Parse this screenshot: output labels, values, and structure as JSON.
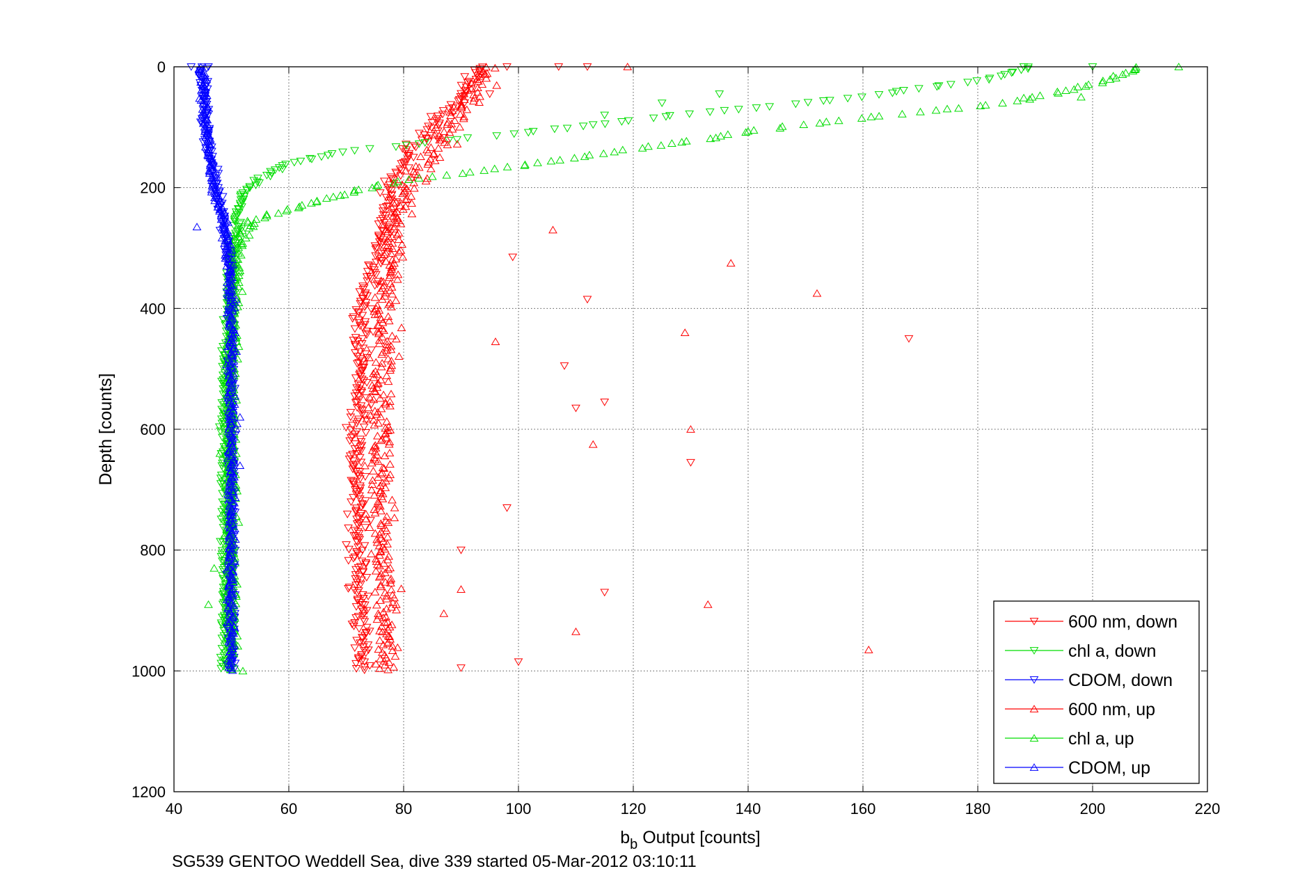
{
  "chart_data": {
    "type": "scatter",
    "xlabel_base": "b",
    "xlabel_sub": "b",
    "xlabel_rest": " Output [counts]",
    "ylabel": "Depth [counts]",
    "xlim": [
      40,
      220
    ],
    "ylim": [
      0,
      1200
    ],
    "y_reversed": true,
    "grid": true,
    "legend_position": "bottom-right",
    "x_ticks": [
      40,
      60,
      80,
      100,
      120,
      140,
      160,
      180,
      200,
      220
    ],
    "y_ticks": [
      0,
      200,
      400,
      600,
      800,
      1000,
      1200
    ],
    "series": [
      {
        "name": "600 nm, down",
        "color": "#ff0000",
        "marker": "triangle-down",
        "profile": [
          [
            0,
            93
          ],
          [
            50,
            90
          ],
          [
            100,
            85
          ],
          [
            150,
            80
          ],
          [
            200,
            78
          ],
          [
            300,
            76
          ],
          [
            350,
            74
          ],
          [
            400,
            73
          ],
          [
            600,
            72
          ],
          [
            800,
            72
          ],
          [
            1000,
            73
          ]
        ],
        "spread": 2.2,
        "outliers": [
          [
            0,
            98
          ],
          [
            0,
            107
          ],
          [
            0,
            112
          ],
          [
            45,
            95
          ],
          [
            120,
            86
          ],
          [
            315,
            99
          ],
          [
            385,
            112
          ],
          [
            450,
            168
          ],
          [
            495,
            108
          ],
          [
            555,
            115
          ],
          [
            565,
            110
          ],
          [
            655,
            130
          ],
          [
            730,
            98
          ],
          [
            800,
            90
          ],
          [
            870,
            115
          ],
          [
            985,
            100
          ],
          [
            995,
            90
          ]
        ]
      },
      {
        "name": "chl a, down",
        "color": "#00dd00",
        "marker": "triangle-down",
        "profile": [
          [
            0,
            190
          ],
          [
            20,
            182
          ],
          [
            50,
            160
          ],
          [
            80,
            128
          ],
          [
            110,
            100
          ],
          [
            140,
            70
          ],
          [
            160,
            60
          ],
          [
            185,
            55
          ],
          [
            210,
            52
          ],
          [
            250,
            51
          ],
          [
            300,
            50
          ],
          [
            500,
            49
          ],
          [
            800,
            49
          ],
          [
            1000,
            49
          ]
        ],
        "spread": 1.2,
        "outliers": [
          [
            0,
            188
          ],
          [
            0,
            200
          ],
          [
            60,
            125
          ],
          [
            45,
            135
          ],
          [
            80,
            115
          ]
        ]
      },
      {
        "name": "CDOM, down",
        "color": "#0000ff",
        "marker": "triangle-down",
        "profile": [
          [
            0,
            45
          ],
          [
            100,
            45.5
          ],
          [
            200,
            47.5
          ],
          [
            300,
            49.5
          ],
          [
            400,
            50
          ],
          [
            600,
            50
          ],
          [
            800,
            50
          ],
          [
            1000,
            50
          ]
        ],
        "spread": 0.9,
        "outliers": [
          [
            0,
            43
          ],
          [
            0,
            46
          ]
        ]
      },
      {
        "name": "600 nm, up",
        "color": "#ff0000",
        "marker": "triangle-up",
        "profile": [
          [
            0,
            94
          ],
          [
            50,
            92
          ],
          [
            100,
            88
          ],
          [
            150,
            85
          ],
          [
            200,
            80
          ],
          [
            300,
            78
          ],
          [
            400,
            77
          ],
          [
            600,
            76
          ],
          [
            800,
            76
          ],
          [
            1000,
            77
          ]
        ],
        "spread": 3.0,
        "outliers": [
          [
            0,
            119
          ],
          [
            270,
            106
          ],
          [
            325,
            137
          ],
          [
            375,
            152
          ],
          [
            440,
            129
          ],
          [
            455,
            96
          ],
          [
            600,
            130
          ],
          [
            625,
            113
          ],
          [
            890,
            133
          ],
          [
            935,
            110
          ],
          [
            965,
            161
          ],
          [
            865,
            90
          ],
          [
            905,
            87
          ]
        ]
      },
      {
        "name": "chl a, up",
        "color": "#00dd00",
        "marker": "triangle-up",
        "profile": [
          [
            0,
            208
          ],
          [
            30,
            200
          ],
          [
            60,
            185
          ],
          [
            80,
            165
          ],
          [
            100,
            145
          ],
          [
            120,
            132
          ],
          [
            150,
            110
          ],
          [
            170,
            95
          ],
          [
            190,
            78
          ],
          [
            210,
            70
          ],
          [
            230,
            62
          ],
          [
            250,
            55
          ],
          [
            270,
            52
          ],
          [
            300,
            51
          ],
          [
            500,
            50
          ],
          [
            800,
            50
          ],
          [
            1000,
            50
          ]
        ],
        "spread": 1.4,
        "outliers": [
          [
            0,
            215
          ],
          [
            50,
            198
          ],
          [
            830,
            47
          ],
          [
            890,
            46
          ],
          [
            1000,
            52
          ],
          [
            640,
            48
          ]
        ]
      },
      {
        "name": "CDOM, up",
        "color": "#0000ff",
        "marker": "triangle-up",
        "profile": [
          [
            0,
            45
          ],
          [
            100,
            45.5
          ],
          [
            200,
            47
          ],
          [
            250,
            48.5
          ],
          [
            300,
            49.5
          ],
          [
            400,
            50
          ],
          [
            600,
            50
          ],
          [
            800,
            50
          ],
          [
            1000,
            50
          ]
        ],
        "spread": 0.9,
        "outliers": [
          [
            265,
            44
          ],
          [
            580,
            51.5
          ],
          [
            660,
            51.5
          ]
        ]
      }
    ]
  },
  "caption": "SG539 GENTOO Weddell Sea, dive 339 started 05-Mar-2012 03:10:11"
}
